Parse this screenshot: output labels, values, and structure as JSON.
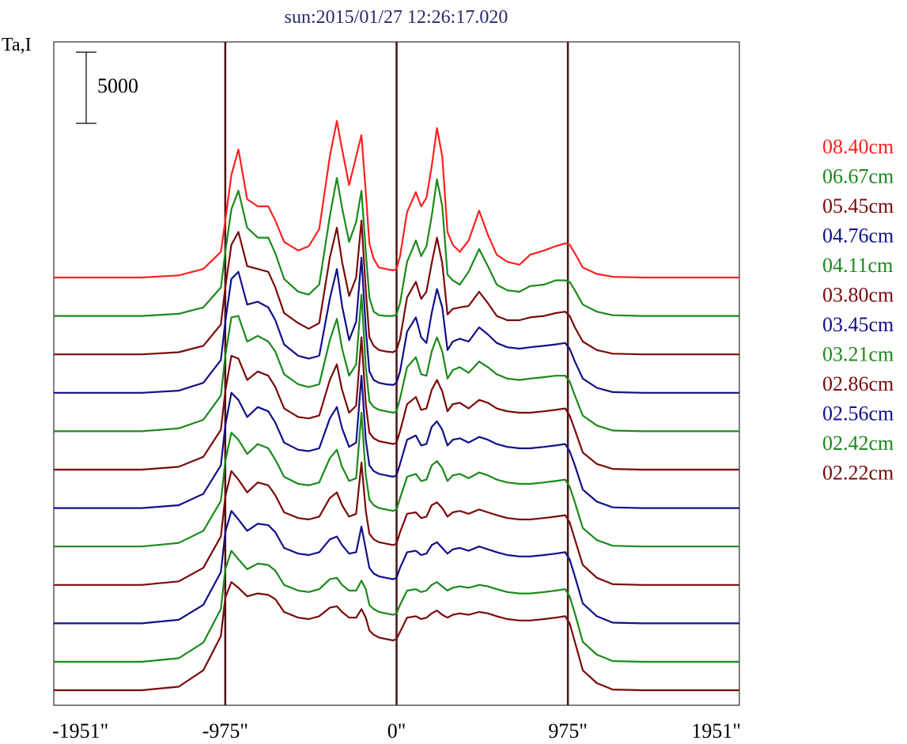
{
  "chart_data": {
    "type": "line",
    "title": "sun:2015/01/27 12:26:17.020",
    "ylabel": "Ta,I",
    "xlabel": "",
    "xlim": [
      -1951,
      1951
    ],
    "x_ticks": [
      "-1951\"",
      "-975\"",
      "0\"",
      "975\"",
      "1951\""
    ],
    "x_tick_values": [
      -1951,
      -975,
      0,
      975,
      1951
    ],
    "vertical_lines": [
      -975,
      0,
      975
    ],
    "scale_bar": {
      "value": 5000,
      "label": "5000"
    },
    "grid": false,
    "legend_position": "right",
    "profile_x": [
      -1951,
      -1450,
      -1240,
      -1100,
      -1000,
      -975,
      -940,
      -900,
      -850,
      -790,
      -730,
      -690,
      -640,
      -560,
      -500,
      -440,
      -380,
      -340,
      -310,
      -270,
      -230,
      -200,
      -175,
      -155,
      -130,
      -100,
      -60,
      -20,
      0,
      20,
      60,
      110,
      140,
      170,
      200,
      230,
      260,
      290,
      320,
      360,
      410,
      470,
      520,
      570,
      630,
      700,
      760,
      840,
      905,
      960,
      985,
      1015,
      1060,
      1140,
      1230,
      1400,
      1951
    ],
    "series": [
      {
        "name": "08.40cm",
        "color": "#ff2020",
        "offset": 29000,
        "values": [
          0,
          0,
          150,
          600,
          1800,
          4000,
          7200,
          9000,
          5500,
          5000,
          5000,
          4000,
          2500,
          1900,
          2200,
          3400,
          8500,
          11000,
          9000,
          6500,
          8500,
          10000,
          6000,
          2400,
          1300,
          700,
          600,
          500,
          600,
          1500,
          4600,
          6000,
          5000,
          5600,
          7800,
          10500,
          8500,
          3200,
          2300,
          1800,
          2600,
          4700,
          3000,
          1600,
          1100,
          900,
          1600,
          1900,
          2200,
          2400,
          2300,
          1700,
          700,
          250,
          50,
          0,
          0
        ]
      },
      {
        "name": "06.67cm",
        "color": "#1a8a1a",
        "offset": 26300,
        "values": [
          0,
          0,
          150,
          600,
          2000,
          4500,
          7500,
          8800,
          6200,
          5500,
          5500,
          4400,
          2600,
          1700,
          1500,
          2200,
          7000,
          9700,
          7600,
          5200,
          6600,
          8800,
          4500,
          1300,
          300,
          50,
          0,
          0,
          100,
          900,
          3800,
          5300,
          4200,
          4900,
          7000,
          9600,
          7700,
          2900,
          2500,
          2200,
          3100,
          4700,
          3500,
          2200,
          1800,
          1700,
          2100,
          2200,
          2500,
          2500,
          2400,
          1800,
          800,
          300,
          50,
          0,
          0
        ]
      },
      {
        "name": "05.45cm",
        "color": "#7a0a0a",
        "offset": 23600,
        "values": [
          0,
          0,
          150,
          600,
          2100,
          4700,
          7700,
          8600,
          6200,
          6000,
          5800,
          4700,
          2900,
          2200,
          1800,
          2200,
          6800,
          8900,
          6500,
          4100,
          5400,
          9400,
          4500,
          1200,
          600,
          300,
          200,
          150,
          300,
          1100,
          4000,
          5100,
          3900,
          4400,
          6400,
          8200,
          6400,
          2800,
          3200,
          3300,
          3400,
          4400,
          3600,
          2700,
          2400,
          2400,
          2600,
          2700,
          2900,
          3000,
          2700,
          1900,
          900,
          300,
          50,
          0,
          0
        ]
      },
      {
        "name": "04.76cm",
        "color": "#10108a",
        "offset": 20900,
        "values": [
          0,
          0,
          150,
          700,
          2300,
          5000,
          8000,
          8500,
          6200,
          6400,
          6000,
          5100,
          3400,
          2600,
          2400,
          2600,
          6600,
          8700,
          6100,
          3700,
          5000,
          9500,
          4500,
          1500,
          900,
          700,
          600,
          550,
          700,
          1500,
          4300,
          5300,
          3900,
          3500,
          5600,
          7300,
          6000,
          3000,
          3600,
          3800,
          3600,
          4600,
          4100,
          3500,
          3200,
          3100,
          3200,
          3300,
          3400,
          3500,
          3100,
          2200,
          1000,
          350,
          50,
          0,
          0
        ]
      },
      {
        "name": "04.11cm",
        "color": "#1a8a1a",
        "offset": 18200,
        "values": [
          0,
          0,
          200,
          800,
          2500,
          5300,
          8000,
          8100,
          6300,
          6700,
          6300,
          5600,
          4000,
          3300,
          3100,
          3300,
          6400,
          7900,
          5800,
          3900,
          4700,
          9600,
          4500,
          2100,
          1700,
          1500,
          1400,
          1300,
          1400,
          2300,
          4500,
          5200,
          4000,
          3900,
          5600,
          6600,
          5600,
          3700,
          4300,
          4500,
          4100,
          4900,
          4500,
          4000,
          3700,
          3600,
          3700,
          3800,
          3900,
          3900,
          3500,
          2500,
          1100,
          400,
          50,
          0,
          0
        ]
      },
      {
        "name": "03.80cm",
        "color": "#7a0a0a",
        "offset": 15500,
        "values": [
          0,
          0,
          200,
          900,
          2800,
          5500,
          8000,
          7800,
          6300,
          6900,
          6600,
          5800,
          4300,
          3700,
          3600,
          3800,
          6300,
          7400,
          5600,
          4000,
          4500,
          9300,
          4600,
          2600,
          2200,
          2000,
          1900,
          1800,
          1900,
          2700,
          4600,
          5100,
          4200,
          4300,
          5600,
          6300,
          5500,
          4100,
          4600,
          4700,
          4300,
          4900,
          4700,
          4300,
          4100,
          4000,
          4000,
          4100,
          4200,
          4300,
          3800,
          2800,
          1200,
          400,
          50,
          0,
          0
        ]
      },
      {
        "name": "03.45cm",
        "color": "#10108a",
        "offset": 12800,
        "values": [
          0,
          0,
          200,
          1000,
          3000,
          5800,
          8100,
          7600,
          6400,
          7100,
          6800,
          6000,
          4600,
          4100,
          4000,
          4200,
          6300,
          7100,
          5600,
          4300,
          4600,
          9300,
          4800,
          3000,
          2600,
          2400,
          2300,
          2200,
          2300,
          3100,
          4800,
          5100,
          4400,
          4500,
          5700,
          6100,
          5500,
          4400,
          4800,
          4900,
          4600,
          5000,
          4800,
          4500,
          4300,
          4200,
          4200,
          4300,
          4400,
          4500,
          4000,
          3000,
          1300,
          450,
          50,
          0,
          0
        ]
      },
      {
        "name": "03.21cm",
        "color": "#1a8a1a",
        "offset": 10100,
        "values": [
          0,
          0,
          250,
          1100,
          3200,
          6000,
          8000,
          7500,
          6500,
          7200,
          6900,
          6100,
          4900,
          4400,
          4300,
          4500,
          6200,
          6800,
          5600,
          4600,
          4800,
          9400,
          5000,
          3300,
          2900,
          2700,
          2600,
          2500,
          2600,
          3400,
          4900,
          5100,
          4600,
          4700,
          5700,
          6000,
          5500,
          4600,
          5000,
          5100,
          4800,
          5200,
          5000,
          4700,
          4500,
          4400,
          4400,
          4500,
          4600,
          4700,
          4200,
          3100,
          1300,
          450,
          50,
          0,
          0
        ]
      },
      {
        "name": "02.86cm",
        "color": "#7a0a0a",
        "offset": 7400,
        "values": [
          0,
          0,
          250,
          1200,
          3400,
          6200,
          8000,
          7400,
          6500,
          7200,
          7000,
          6300,
          5100,
          4700,
          4600,
          4800,
          6100,
          6500,
          5600,
          4800,
          5000,
          8600,
          5200,
          3600,
          3200,
          3000,
          2900,
          2800,
          2900,
          3700,
          5000,
          5100,
          4700,
          4800,
          5600,
          5800,
          5400,
          4800,
          5100,
          5200,
          5000,
          5300,
          5100,
          4900,
          4700,
          4600,
          4600,
          4700,
          4800,
          4900,
          4400,
          3200,
          1400,
          500,
          50,
          0,
          0
        ]
      },
      {
        "name": "02.56cm",
        "color": "#10108a",
        "offset": 4700,
        "values": [
          0,
          0,
          250,
          1300,
          3600,
          6400,
          7900,
          7300,
          6500,
          7000,
          6900,
          6400,
          5300,
          4900,
          4800,
          5000,
          5900,
          6100,
          5500,
          4900,
          5000,
          6800,
          5200,
          3900,
          3500,
          3300,
          3200,
          3100,
          3200,
          3900,
          5000,
          5100,
          4800,
          4900,
          5500,
          5700,
          5300,
          4900,
          5200,
          5300,
          5100,
          5400,
          5200,
          5000,
          4800,
          4700,
          4700,
          4800,
          4900,
          5000,
          4500,
          3300,
          1400,
          500,
          50,
          0,
          0
        ]
      },
      {
        "name": "02.42cm",
        "color": "#1a8a1a",
        "offset": 2000,
        "values": [
          0,
          0,
          250,
          1350,
          3700,
          6500,
          7800,
          7200,
          6500,
          6900,
          6800,
          6400,
          5400,
          5000,
          4900,
          5100,
          5800,
          5900,
          5400,
          5000,
          5000,
          5700,
          5100,
          4000,
          3700,
          3500,
          3400,
          3300,
          3400,
          4000,
          5000,
          5100,
          4900,
          5000,
          5400,
          5600,
          5300,
          5000,
          5200,
          5300,
          5200,
          5400,
          5300,
          5100,
          4900,
          4800,
          4800,
          4900,
          5000,
          5100,
          4600,
          3400,
          1400,
          500,
          50,
          0,
          0
        ]
      },
      {
        "name": "02.22cm",
        "color": "#7a0a0a",
        "offset": 0,
        "values": [
          0,
          0,
          250,
          1400,
          3800,
          6500,
          7600,
          7200,
          6600,
          6800,
          6700,
          6400,
          5500,
          5100,
          5000,
          5200,
          5800,
          5900,
          5500,
          5100,
          5100,
          5700,
          5100,
          4200,
          3900,
          3700,
          3600,
          3500,
          3600,
          4100,
          5100,
          5200,
          5000,
          5100,
          5400,
          5600,
          5300,
          5100,
          5300,
          5400,
          5300,
          5500,
          5400,
          5200,
          5000,
          4900,
          4900,
          5000,
          5100,
          5200,
          4700,
          3400,
          1400,
          500,
          50,
          0,
          0
        ]
      }
    ]
  }
}
